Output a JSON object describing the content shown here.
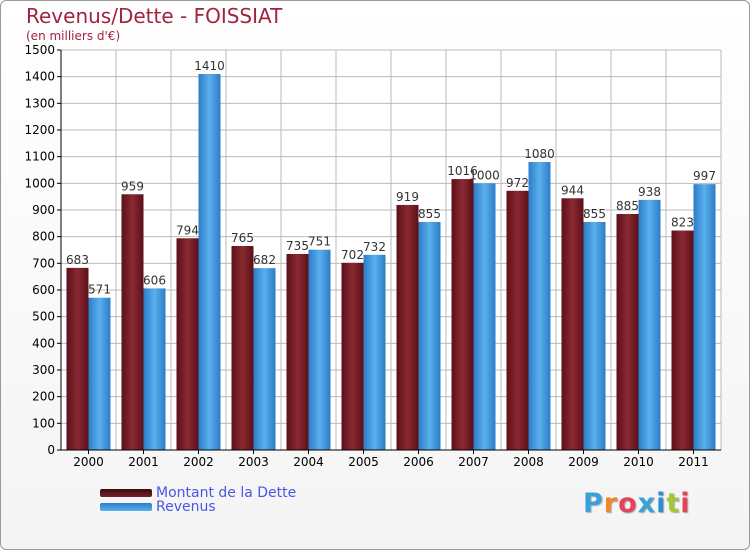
{
  "header": {
    "title": "Revenus/Dette - FOISSIAT",
    "subtitle": "(en milliers d'€)"
  },
  "legend": {
    "items": [
      {
        "label": "Montant de la Dette",
        "color": "#5c0f18"
      },
      {
        "label": "Revenus",
        "color": "#3a93e0"
      }
    ]
  },
  "logo": {
    "text": "Proxiti",
    "letter_colors": [
      "#3aa0d8",
      "#f0852c",
      "#e8425a",
      "#3aa0d8",
      "#2b8fd0",
      "#a0c83a",
      "#e8425a"
    ]
  },
  "colors": {
    "debt_dark": "#5c0f18",
    "debt_light": "#8a2a32",
    "revenue_dark": "#2c7cc8",
    "revenue_light": "#5ab0ec",
    "axis_text": "#000000",
    "grid": "#bbbbbb",
    "plot_bg": "#ffffff"
  },
  "chart_data": {
    "type": "bar",
    "title": "Revenus/Dette - FOISSIAT",
    "subtitle": "(en milliers d'€)",
    "categories": [
      "2000",
      "2001",
      "2002",
      "2003",
      "2004",
      "2005",
      "2006",
      "2007",
      "2008",
      "2009",
      "2010",
      "2011"
    ],
    "series": [
      {
        "name": "Montant de la Dette",
        "values": [
          683,
          959,
          794,
          765,
          735,
          702,
          919,
          1016,
          972,
          944,
          885,
          823
        ]
      },
      {
        "name": "Revenus",
        "values": [
          571,
          606,
          1410,
          682,
          751,
          732,
          855,
          1000,
          1080,
          855,
          938,
          997
        ]
      }
    ],
    "ylim": [
      0,
      1500
    ],
    "yticks": [
      0,
      100,
      200,
      300,
      400,
      500,
      600,
      700,
      800,
      900,
      1000,
      1100,
      1200,
      1300,
      1400,
      1500
    ],
    "grid": true,
    "legend_position": "bottom-left"
  }
}
